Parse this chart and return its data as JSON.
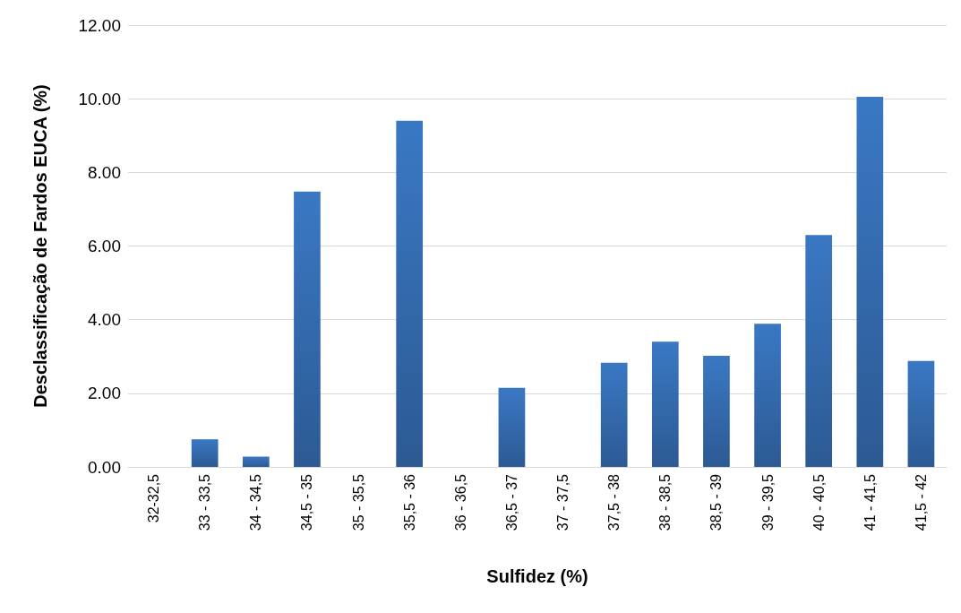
{
  "chart_data": {
    "type": "bar",
    "xlabel": "Sulfidez (%)",
    "ylabel": "Desclassificação de Fardos EUCA (%)",
    "categories": [
      "32-32,5",
      "33 - 33,5",
      "34 - 34,5",
      "34,5 - 35",
      "35 - 35,5",
      "35,5 - 36",
      "36 - 36,5",
      "36,5 - 37",
      "37 - 37,5",
      "37,5 - 38",
      "38 - 38,5",
      "38,5 - 39",
      "39 - 39,5",
      "40 - 40,5",
      "41 - 41,5",
      "41,5 - 42"
    ],
    "values": [
      0,
      0.75,
      0.28,
      7.48,
      0,
      9.4,
      0,
      2.15,
      0,
      2.83,
      3.4,
      3.02,
      3.89,
      6.3,
      10.05,
      2.88
    ],
    "color": "#3a78c4",
    "ylim": [
      0,
      12
    ],
    "yticks": [
      {
        "value": 0,
        "label": "0.00"
      },
      {
        "value": 2,
        "label": "2.00"
      },
      {
        "value": 4,
        "label": "4.00"
      },
      {
        "value": 6,
        "label": "6.00"
      },
      {
        "value": 8,
        "label": "8.00"
      },
      {
        "value": 10,
        "label": "10.00"
      },
      {
        "value": 12,
        "label": "12.00"
      }
    ],
    "grid": "y"
  }
}
